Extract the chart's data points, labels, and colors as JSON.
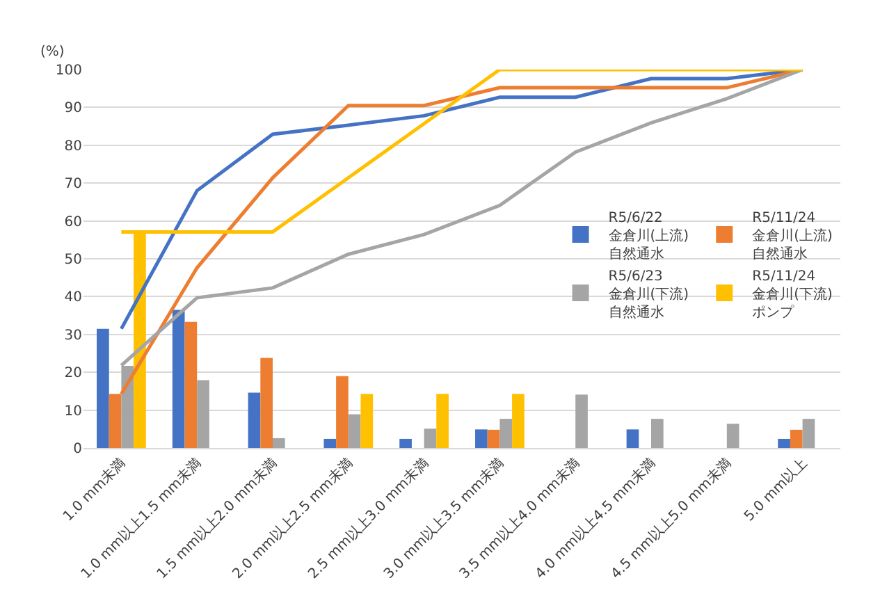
{
  "chart_data": {
    "type": "bar",
    "ylabel": "(%)",
    "categories": [
      "1.0 mm未満",
      "1.0 mm以上1.5 mm未満",
      "1.5 mm以上2.0 mm未満",
      "2.0 mm以上2.5 mm未満",
      "2.5 mm以上3.0 mm未満",
      "3.0 mm以上3.5 mm未満",
      "3.5 mm以上4.0 mm未満",
      "4.0 mm以上4.5 mm未満",
      "4.5 mm以上5.0 mm未満",
      "5.0 mm以上"
    ],
    "series": [
      {
        "name": "R5/6/22\n金倉川(上流)\n自然通水",
        "color": "#4472c4",
        "values": [
          31.5,
          36.5,
          14.6,
          2.4,
          2.4,
          4.9,
          0,
          4.9,
          0,
          2.4
        ]
      },
      {
        "name": "R5/11/24\n金倉川(上流)\n自然通水",
        "color": "#ed7d31",
        "values": [
          14.3,
          33.3,
          23.8,
          19.0,
          0,
          4.8,
          0,
          0,
          0,
          4.8
        ]
      },
      {
        "name": "R5/6/23\n金倉川(下流)\n自然通水",
        "color": "#a5a5a5",
        "values": [
          21.7,
          17.9,
          2.6,
          8.9,
          5.1,
          7.7,
          14.1,
          7.7,
          6.4,
          7.7
        ]
      },
      {
        "name": "R5/11/24\n金倉川(下流)\nポンプ",
        "color": "#ffc000",
        "values": [
          57.1,
          0,
          0,
          14.3,
          14.3,
          14.3,
          0,
          0,
          0,
          0
        ]
      },
      {
        "type": "line",
        "color": "#4472c4",
        "values": [
          31.5,
          68.0,
          82.9,
          85.3,
          87.8,
          92.7,
          92.7,
          97.6,
          97.6,
          100
        ]
      },
      {
        "type": "line",
        "color": "#ed7d31",
        "values": [
          14.3,
          47.6,
          71.4,
          90.5,
          90.5,
          95.2,
          95.2,
          95.2,
          95.2,
          100
        ]
      },
      {
        "type": "line",
        "color": "#a5a5a5",
        "values": [
          21.8,
          39.7,
          42.3,
          51.2,
          56.4,
          64.1,
          78.2,
          85.9,
          92.3,
          100
        ]
      },
      {
        "type": "line",
        "color": "#ffc000",
        "values": [
          57.1,
          57.1,
          57.1,
          71.4,
          85.7,
          100,
          100,
          100,
          100,
          100
        ]
      }
    ],
    "ylim": [
      0,
      100
    ],
    "yticks": [
      0,
      10,
      20,
      30,
      40,
      50,
      60,
      70,
      80,
      90,
      100
    ],
    "grid": "y",
    "legend": "right",
    "marker": "none",
    "line_style": "solid"
  }
}
